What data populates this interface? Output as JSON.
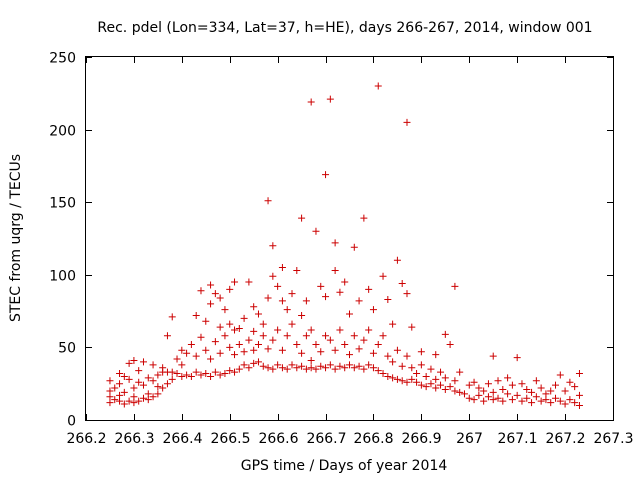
{
  "chart_data": {
    "type": "scatter",
    "title": "Rec. pdel (Lon=334, Lat=37, h=HE), days 266-267, 2014, window 001",
    "xlabel": "GPS time / Days of year 2014",
    "ylabel": "STEC from uqrg / TECUs",
    "xlim": [
      266.2,
      267.3
    ],
    "ylim": [
      0,
      250
    ],
    "xticks": [
      266.2,
      266.3,
      266.4,
      266.5,
      266.6,
      266.7,
      266.8,
      266.9,
      267.0,
      267.1,
      267.2,
      267.3
    ],
    "xtick_labels": [
      "266.2",
      "266.3",
      "266.4",
      "266.5",
      "266.6",
      "266.7",
      "266.8",
      "266.9",
      "267",
      "267.1",
      "267.2",
      "267.3"
    ],
    "yticks": [
      0,
      50,
      100,
      150,
      200,
      250
    ],
    "ytick_labels": [
      "0",
      "50",
      "100",
      "150",
      "200",
      "250"
    ],
    "grid": false,
    "marker": "+",
    "color": "#cc0000",
    "series": [
      {
        "name": "STEC",
        "points": [
          [
            266.25,
            12
          ],
          [
            266.25,
            16
          ],
          [
            266.25,
            20
          ],
          [
            266.25,
            27
          ],
          [
            266.26,
            14
          ],
          [
            266.26,
            22
          ],
          [
            266.27,
            13
          ],
          [
            266.27,
            17
          ],
          [
            266.27,
            25
          ],
          [
            266.27,
            32
          ],
          [
            266.28,
            11
          ],
          [
            266.28,
            19
          ],
          [
            266.28,
            30
          ],
          [
            266.29,
            13
          ],
          [
            266.29,
            28
          ],
          [
            266.29,
            39
          ],
          [
            266.3,
            12
          ],
          [
            266.3,
            16
          ],
          [
            266.3,
            22
          ],
          [
            266.3,
            41
          ],
          [
            266.31,
            13
          ],
          [
            266.31,
            26
          ],
          [
            266.31,
            34
          ],
          [
            266.32,
            15
          ],
          [
            266.32,
            24
          ],
          [
            266.32,
            40
          ],
          [
            266.33,
            14
          ],
          [
            266.33,
            18
          ],
          [
            266.33,
            29
          ],
          [
            266.34,
            16
          ],
          [
            266.34,
            27
          ],
          [
            266.34,
            38
          ],
          [
            266.35,
            18
          ],
          [
            266.35,
            23
          ],
          [
            266.35,
            31
          ],
          [
            266.36,
            22
          ],
          [
            266.36,
            33
          ],
          [
            266.36,
            36
          ],
          [
            266.37,
            25
          ],
          [
            266.37,
            33
          ],
          [
            266.37,
            58
          ],
          [
            266.38,
            28
          ],
          [
            266.38,
            33
          ],
          [
            266.38,
            71
          ],
          [
            266.39,
            32
          ],
          [
            266.39,
            42
          ],
          [
            266.4,
            30
          ],
          [
            266.4,
            38
          ],
          [
            266.4,
            48
          ],
          [
            266.41,
            31
          ],
          [
            266.41,
            46
          ],
          [
            266.42,
            30
          ],
          [
            266.42,
            52
          ],
          [
            266.43,
            33
          ],
          [
            266.43,
            44
          ],
          [
            266.43,
            72
          ],
          [
            266.44,
            31
          ],
          [
            266.44,
            57
          ],
          [
            266.44,
            89
          ],
          [
            266.45,
            32
          ],
          [
            266.45,
            48
          ],
          [
            266.45,
            68
          ],
          [
            266.46,
            30
          ],
          [
            266.46,
            42
          ],
          [
            266.46,
            80
          ],
          [
            266.46,
            93
          ],
          [
            266.47,
            33
          ],
          [
            266.47,
            54
          ],
          [
            266.47,
            87
          ],
          [
            266.48,
            31
          ],
          [
            266.48,
            46
          ],
          [
            266.48,
            64
          ],
          [
            266.48,
            84
          ],
          [
            266.49,
            32
          ],
          [
            266.49,
            58
          ],
          [
            266.49,
            76
          ],
          [
            266.5,
            34
          ],
          [
            266.5,
            50
          ],
          [
            266.5,
            66
          ],
          [
            266.5,
            90
          ],
          [
            266.51,
            33
          ],
          [
            266.51,
            45
          ],
          [
            266.51,
            62
          ],
          [
            266.51,
            95
          ],
          [
            266.52,
            35
          ],
          [
            266.52,
            52
          ],
          [
            266.52,
            63
          ],
          [
            266.53,
            38
          ],
          [
            266.53,
            47
          ],
          [
            266.53,
            70
          ],
          [
            266.54,
            36
          ],
          [
            266.54,
            55
          ],
          [
            266.54,
            95
          ],
          [
            266.55,
            39
          ],
          [
            266.55,
            48
          ],
          [
            266.55,
            61
          ],
          [
            266.55,
            78
          ],
          [
            266.56,
            40
          ],
          [
            266.56,
            52
          ],
          [
            266.56,
            73
          ],
          [
            266.57,
            37
          ],
          [
            266.57,
            58
          ],
          [
            266.57,
            66
          ],
          [
            266.58,
            36
          ],
          [
            266.58,
            49
          ],
          [
            266.58,
            84
          ],
          [
            266.58,
            151
          ],
          [
            266.59,
            35
          ],
          [
            266.59,
            55
          ],
          [
            266.59,
            99
          ],
          [
            266.59,
            120
          ],
          [
            266.6,
            38
          ],
          [
            266.6,
            62
          ],
          [
            266.6,
            92
          ],
          [
            266.61,
            36
          ],
          [
            266.61,
            48
          ],
          [
            266.61,
            82
          ],
          [
            266.61,
            105
          ],
          [
            266.62,
            35
          ],
          [
            266.62,
            58
          ],
          [
            266.62,
            76
          ],
          [
            266.63,
            38
          ],
          [
            266.63,
            66
          ],
          [
            266.63,
            87
          ],
          [
            266.64,
            36
          ],
          [
            266.64,
            52
          ],
          [
            266.64,
            103
          ],
          [
            266.65,
            37
          ],
          [
            266.65,
            46
          ],
          [
            266.65,
            72
          ],
          [
            266.65,
            139
          ],
          [
            266.66,
            35
          ],
          [
            266.66,
            58
          ],
          [
            266.66,
            82
          ],
          [
            266.67,
            36
          ],
          [
            266.67,
            41
          ],
          [
            266.67,
            62
          ],
          [
            266.67,
            219
          ],
          [
            266.68,
            35
          ],
          [
            266.68,
            52
          ],
          [
            266.68,
            130
          ],
          [
            266.69,
            37
          ],
          [
            266.69,
            47
          ],
          [
            266.69,
            92
          ],
          [
            266.7,
            36
          ],
          [
            266.7,
            58
          ],
          [
            266.7,
            85
          ],
          [
            266.7,
            169
          ],
          [
            266.71,
            38
          ],
          [
            266.71,
            55
          ],
          [
            266.71,
            221
          ],
          [
            266.72,
            35
          ],
          [
            266.72,
            48
          ],
          [
            266.72,
            122
          ],
          [
            266.72,
            103
          ],
          [
            266.73,
            37
          ],
          [
            266.73,
            62
          ],
          [
            266.73,
            88
          ],
          [
            266.74,
            36
          ],
          [
            266.74,
            52
          ],
          [
            266.74,
            95
          ],
          [
            266.75,
            38
          ],
          [
            266.75,
            45
          ],
          [
            266.75,
            73
          ],
          [
            266.76,
            36
          ],
          [
            266.76,
            58
          ],
          [
            266.76,
            119
          ],
          [
            266.77,
            37
          ],
          [
            266.77,
            49
          ],
          [
            266.77,
            82
          ],
          [
            266.78,
            35
          ],
          [
            266.78,
            55
          ],
          [
            266.78,
            139
          ],
          [
            266.79,
            38
          ],
          [
            266.79,
            62
          ],
          [
            266.79,
            90
          ],
          [
            266.8,
            36
          ],
          [
            266.8,
            46
          ],
          [
            266.8,
            76
          ],
          [
            266.81,
            34
          ],
          [
            266.81,
            52
          ],
          [
            266.81,
            230
          ],
          [
            266.82,
            32
          ],
          [
            266.82,
            58
          ],
          [
            266.82,
            99
          ],
          [
            266.83,
            30
          ],
          [
            266.83,
            44
          ],
          [
            266.83,
            83
          ],
          [
            266.84,
            29
          ],
          [
            266.84,
            40
          ],
          [
            266.84,
            66
          ],
          [
            266.85,
            28
          ],
          [
            266.85,
            48
          ],
          [
            266.85,
            110
          ],
          [
            266.86,
            27
          ],
          [
            266.86,
            37
          ],
          [
            266.86,
            94
          ],
          [
            266.87,
            26
          ],
          [
            266.87,
            44
          ],
          [
            266.87,
            205
          ],
          [
            266.87,
            87
          ],
          [
            266.88,
            28
          ],
          [
            266.88,
            36
          ],
          [
            266.88,
            64
          ],
          [
            266.89,
            26
          ],
          [
            266.89,
            32
          ],
          [
            266.9,
            24
          ],
          [
            266.9,
            38
          ],
          [
            266.9,
            47
          ],
          [
            266.91,
            23
          ],
          [
            266.91,
            30
          ],
          [
            266.92,
            25
          ],
          [
            266.92,
            35
          ],
          [
            266.93,
            22
          ],
          [
            266.93,
            28
          ],
          [
            266.93,
            45
          ],
          [
            266.94,
            24
          ],
          [
            266.94,
            33
          ],
          [
            266.95,
            21
          ],
          [
            266.95,
            29
          ],
          [
            266.95,
            59
          ],
          [
            266.96,
            23
          ],
          [
            266.96,
            52
          ],
          [
            266.97,
            20
          ],
          [
            266.97,
            27
          ],
          [
            266.97,
            92
          ],
          [
            266.98,
            19
          ],
          [
            266.98,
            33
          ],
          [
            266.99,
            18
          ],
          [
            267.0,
            24
          ],
          [
            267.0,
            15
          ],
          [
            267.01,
            26
          ],
          [
            267.01,
            14
          ],
          [
            267.02,
            22
          ],
          [
            267.02,
            17
          ],
          [
            267.03,
            20
          ],
          [
            267.03,
            13
          ],
          [
            267.04,
            25
          ],
          [
            267.04,
            16
          ],
          [
            267.05,
            44
          ],
          [
            267.05,
            19
          ],
          [
            267.05,
            14
          ],
          [
            267.06,
            27
          ],
          [
            267.06,
            15
          ],
          [
            267.07,
            21
          ],
          [
            267.07,
            13
          ],
          [
            267.08,
            29
          ],
          [
            267.08,
            18
          ],
          [
            267.09,
            24
          ],
          [
            267.09,
            14
          ],
          [
            267.1,
            43
          ],
          [
            267.1,
            17
          ],
          [
            267.11,
            25
          ],
          [
            267.11,
            13
          ],
          [
            267.12,
            21
          ],
          [
            267.12,
            15
          ],
          [
            267.13,
            19
          ],
          [
            267.13,
            12
          ],
          [
            267.14,
            27
          ],
          [
            267.14,
            16
          ],
          [
            267.15,
            22
          ],
          [
            267.15,
            13
          ],
          [
            267.16,
            18
          ],
          [
            267.16,
            14
          ],
          [
            267.17,
            20
          ],
          [
            267.17,
            12
          ],
          [
            267.18,
            24
          ],
          [
            267.18,
            15
          ],
          [
            267.19,
            31
          ],
          [
            267.19,
            13
          ],
          [
            267.2,
            20
          ],
          [
            267.2,
            11
          ],
          [
            267.21,
            26
          ],
          [
            267.21,
            14
          ],
          [
            267.22,
            23
          ],
          [
            267.22,
            12
          ],
          [
            267.23,
            32
          ],
          [
            267.23,
            17
          ],
          [
            267.23,
            10
          ]
        ]
      }
    ]
  }
}
